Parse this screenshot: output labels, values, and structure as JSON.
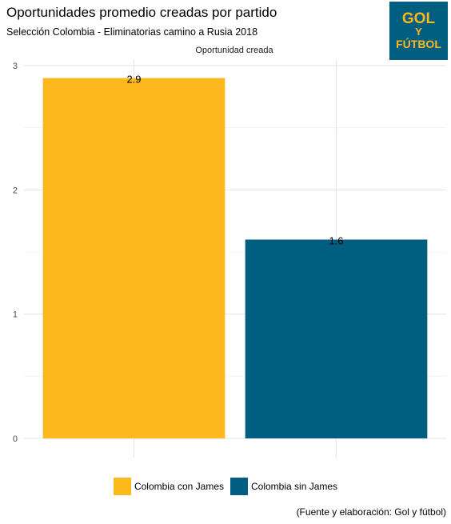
{
  "chart_data": {
    "type": "bar",
    "title": "Oportunidades promedio creadas por partido",
    "subtitle": "Selección Colombia - Eliminatorias camino a Rusia 2018",
    "facet_label": "Oportunidad creada",
    "categories": [
      "Colombia con James",
      "Colombia sin James"
    ],
    "values": [
      2.9,
      1.6
    ],
    "value_labels": [
      "2.9",
      "1.6"
    ],
    "colors": [
      "#fdb81e",
      "#005f80"
    ],
    "ylim": [
      0,
      3
    ],
    "yticks": [
      "0",
      "1",
      "2",
      "3"
    ],
    "grid": true,
    "legend_position": "bottom",
    "caption": "(Fuente y elaboración: Gol y fútbol)"
  },
  "logo": {
    "line1": "GOL",
    "line2": "Y",
    "line3": "FÚTBOL",
    "background": "#005f80",
    "text_color": "#fdb81e"
  }
}
